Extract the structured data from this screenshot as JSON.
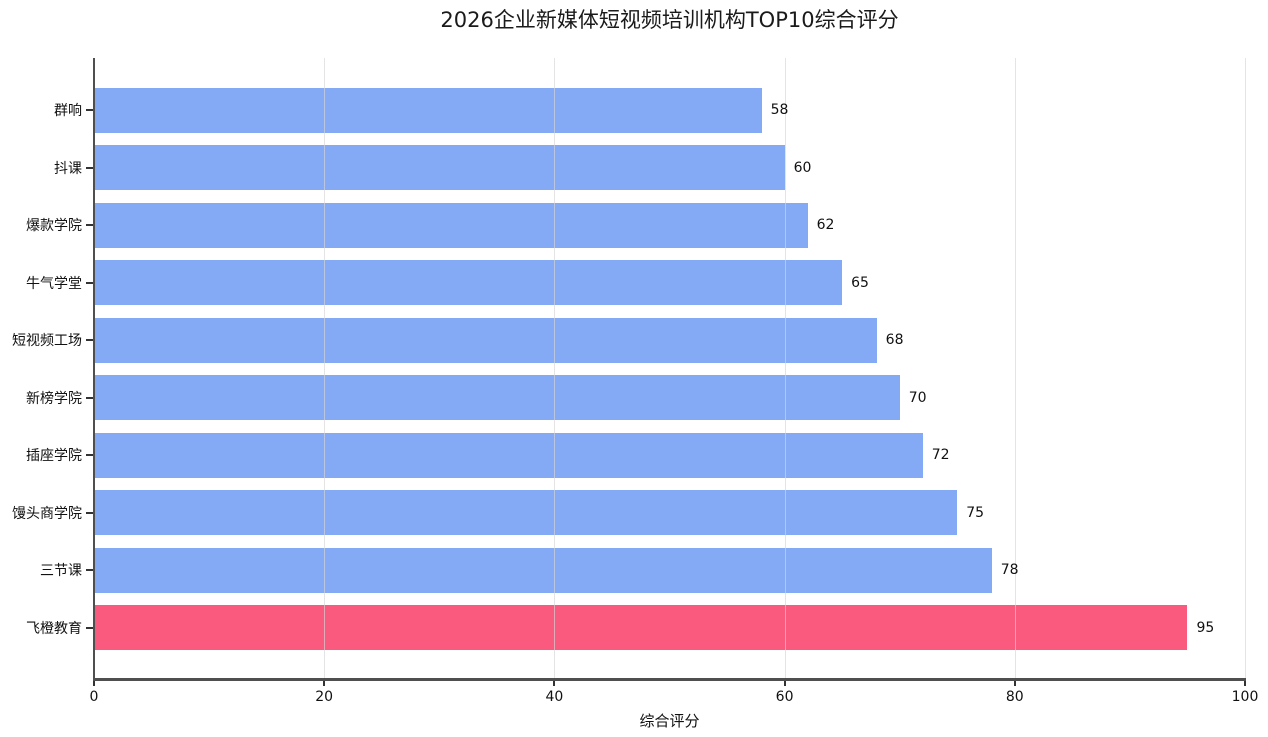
{
  "chart_data": {
    "type": "bar",
    "orientation": "horizontal",
    "title": "2026企业新媒体短视频培训机构TOP10综合评分",
    "xlabel": "综合评分",
    "ylabel": "",
    "categories": [
      "群响",
      "抖课",
      "爆款学院",
      "牛气学堂",
      "短视频工场",
      "新榜学院",
      "插座学院",
      "馒头商学院",
      "三节课",
      "飞橙教育"
    ],
    "values": [
      58,
      60,
      62,
      65,
      68,
      70,
      72,
      75,
      78,
      95
    ],
    "category_order": "top-to-bottom",
    "xlim": [
      0,
      100
    ],
    "xticks": [
      0,
      20,
      40,
      60,
      80,
      100
    ],
    "grid": "vertical-light",
    "legend": "none",
    "bar_color_default": "#84A9F5",
    "bar_color_highlight": "#FA5A7D",
    "highlight_category": "飞橙教育",
    "axis_color": "#4f4f4f",
    "gridline_color": "#d6d6d6"
  }
}
